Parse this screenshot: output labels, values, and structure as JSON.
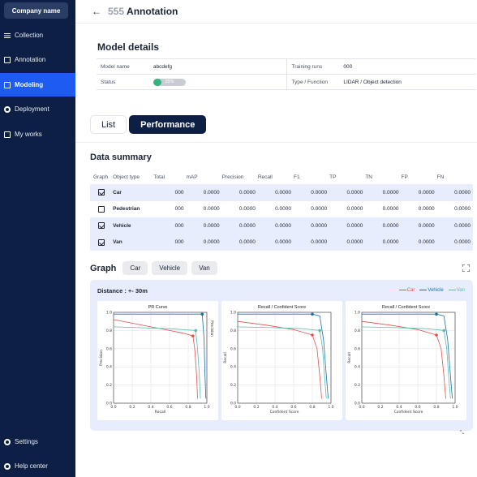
{
  "sidebar": {
    "company": "Company name",
    "items": [
      {
        "label": "Collection",
        "icon": "list-icon"
      },
      {
        "label": "Annotation",
        "icon": "annotation-icon"
      },
      {
        "label": "Modeling",
        "icon": "modeling-icon",
        "active": true
      },
      {
        "label": "Deployment",
        "icon": "gear-icon"
      },
      {
        "label": "My works",
        "icon": "document-icon"
      }
    ],
    "bottom": [
      {
        "label": "Settings",
        "icon": "settings-icon"
      },
      {
        "label": "Help center",
        "icon": "help-icon"
      }
    ]
  },
  "header": {
    "back_icon": "←",
    "title_number": "555",
    "title": "Annotation"
  },
  "model_details": {
    "title": "Model details",
    "model_name_label": "Model name",
    "model_name": "abcdefg",
    "status_label": "Status",
    "status_progress": 0.25,
    "status_text": "25%",
    "training_runs_label": "Training runs",
    "training_runs": "000",
    "type_label": "Type / Function",
    "type_value": "LIDAR / Object detection"
  },
  "tabs": [
    {
      "label": "List"
    },
    {
      "label": "Performance",
      "active": true
    }
  ],
  "data_summary": {
    "title": "Data summary",
    "columns": [
      "Graph",
      "Object type",
      "Total",
      "mAP",
      "Precision",
      "Recall",
      "F1",
      "TP",
      "TN",
      "FP",
      "FN"
    ],
    "rows": [
      {
        "checked": true,
        "type": "Car",
        "total": "000",
        "map": "0.0000",
        "precision": "0.0000",
        "recall": "0.0000",
        "f1": "0.0000",
        "tp": "0.0000",
        "tn": "0.0000",
        "fp": "0.0000",
        "fn": "0.0000"
      },
      {
        "checked": false,
        "type": "Pedestrian",
        "total": "000",
        "map": "0.0000",
        "precision": "0.0000",
        "recall": "0.0000",
        "f1": "0.0000",
        "tp": "0.0000",
        "tn": "0.0000",
        "fp": "0.0000",
        "fn": "0.0000"
      },
      {
        "checked": true,
        "type": "Vehicle",
        "total": "000",
        "map": "0.0000",
        "precision": "0.0000",
        "recall": "0.0000",
        "f1": "0.0000",
        "tp": "0.0000",
        "tn": "0.0000",
        "fp": "0.0000",
        "fn": "0.0000"
      },
      {
        "checked": true,
        "type": "Van",
        "total": "000",
        "map": "0.0000",
        "precision": "0.0000",
        "recall": "0.0000",
        "f1": "0.0000",
        "tp": "0.0000",
        "tn": "0.0000",
        "fp": "0.0000",
        "fn": "0.0000"
      }
    ]
  },
  "graph": {
    "title": "Graph",
    "chips": [
      "Car",
      "Vehicle",
      "Van"
    ],
    "distance": "Distance : +- 30m",
    "legend": [
      {
        "name": "Car",
        "color": "#e0524f"
      },
      {
        "name": "Vehicle",
        "color": "#1c6fa6"
      },
      {
        "name": "Van",
        "color": "#5fb8b0"
      }
    ]
  },
  "chart_data": [
    {
      "type": "line",
      "title": "PR Curve",
      "xlabel": "Recall",
      "ylabel": "Precision",
      "right_label": "Precision",
      "xlim": [
        0,
        1
      ],
      "ylim": [
        0,
        1
      ],
      "xticks": [
        "0.0",
        "0.2",
        "0.4",
        "0.6",
        "0.8",
        "1.0"
      ],
      "yticks": [
        "0.0",
        "0.2",
        "0.4",
        "0.6",
        "0.8",
        "1.0"
      ],
      "series": [
        {
          "color": "#e0524f",
          "points": [
            [
              0,
              0.92
            ],
            [
              0.2,
              0.88
            ],
            [
              0.4,
              0.84
            ],
            [
              0.6,
              0.8
            ],
            [
              0.75,
              0.77
            ],
            [
              0.85,
              0.74
            ],
            [
              0.87,
              0.6
            ],
            [
              0.89,
              0.3
            ],
            [
              0.9,
              0.05
            ]
          ],
          "marker": [
            0.85,
            0.74
          ]
        },
        {
          "color": "#1c6fa6",
          "points": [
            [
              0,
              0.98
            ],
            [
              0.4,
              0.98
            ],
            [
              0.7,
              0.98
            ],
            [
              0.95,
              0.98
            ],
            [
              0.97,
              0.7
            ],
            [
              0.98,
              0.3
            ],
            [
              0.99,
              0.05
            ]
          ],
          "marker": [
            0.95,
            0.98
          ]
        },
        {
          "color": "#5fb8b0",
          "points": [
            [
              0,
              0.84
            ],
            [
              0.3,
              0.83
            ],
            [
              0.6,
              0.82
            ],
            [
              0.88,
              0.8
            ],
            [
              0.9,
              0.6
            ],
            [
              0.92,
              0.3
            ],
            [
              0.93,
              0.05
            ]
          ],
          "marker": [
            0.88,
            0.8
          ]
        }
      ]
    },
    {
      "type": "line",
      "title": "Recall / Confident Score",
      "xlabel": "Confident Score",
      "ylabel": "Recall",
      "xlim": [
        0,
        1
      ],
      "ylim": [
        0,
        1
      ],
      "xticks": [
        "0.0",
        "0.2",
        "0.4",
        "0.6",
        "0.8",
        "1.0"
      ],
      "yticks": [
        "0.0",
        "0.2",
        "0.4",
        "0.6",
        "0.8",
        "1.0"
      ],
      "series": [
        {
          "color": "#e0524f",
          "points": [
            [
              0,
              0.9
            ],
            [
              0.3,
              0.86
            ],
            [
              0.6,
              0.81
            ],
            [
              0.8,
              0.75
            ],
            [
              0.85,
              0.6
            ],
            [
              0.88,
              0.3
            ],
            [
              0.9,
              0.05
            ]
          ],
          "marker": [
            0.8,
            0.75
          ]
        },
        {
          "color": "#1c6fa6",
          "points": [
            [
              0,
              0.98
            ],
            [
              0.5,
              0.98
            ],
            [
              0.8,
              0.98
            ],
            [
              0.88,
              0.96
            ],
            [
              0.92,
              0.7
            ],
            [
              0.95,
              0.3
            ],
            [
              0.97,
              0.05
            ]
          ],
          "marker": [
            0.8,
            0.98
          ]
        },
        {
          "color": "#5fb8b0",
          "points": [
            [
              0,
              0.84
            ],
            [
              0.4,
              0.83
            ],
            [
              0.7,
              0.82
            ],
            [
              0.88,
              0.8
            ],
            [
              0.91,
              0.6
            ],
            [
              0.93,
              0.3
            ],
            [
              0.95,
              0.05
            ]
          ],
          "marker": [
            0.88,
            0.8
          ]
        }
      ]
    },
    {
      "type": "line",
      "title": "Recall / Confident Score",
      "xlabel": "Confident Score",
      "ylabel": "Recall",
      "xlim": [
        0,
        1
      ],
      "ylim": [
        0,
        1
      ],
      "xticks": [
        "0.0",
        "0.2",
        "0.4",
        "0.6",
        "0.8",
        "1.0"
      ],
      "yticks": [
        "0.0",
        "0.2",
        "0.4",
        "0.6",
        "0.8",
        "1.0"
      ],
      "series": [
        {
          "color": "#e0524f",
          "points": [
            [
              0,
              0.9
            ],
            [
              0.3,
              0.86
            ],
            [
              0.6,
              0.81
            ],
            [
              0.8,
              0.75
            ],
            [
              0.85,
              0.6
            ],
            [
              0.88,
              0.3
            ],
            [
              0.9,
              0.05
            ]
          ],
          "marker": [
            0.8,
            0.75
          ]
        },
        {
          "color": "#1c6fa6",
          "points": [
            [
              0,
              0.98
            ],
            [
              0.5,
              0.98
            ],
            [
              0.8,
              0.98
            ],
            [
              0.88,
              0.96
            ],
            [
              0.92,
              0.7
            ],
            [
              0.95,
              0.3
            ],
            [
              0.97,
              0.05
            ]
          ],
          "marker": [
            0.8,
            0.98
          ]
        },
        {
          "color": "#5fb8b0",
          "points": [
            [
              0,
              0.84
            ],
            [
              0.4,
              0.83
            ],
            [
              0.7,
              0.82
            ],
            [
              0.88,
              0.8
            ],
            [
              0.91,
              0.6
            ],
            [
              0.93,
              0.3
            ],
            [
              0.95,
              0.05
            ]
          ],
          "marker": [
            0.88,
            0.8
          ]
        }
      ]
    }
  ]
}
